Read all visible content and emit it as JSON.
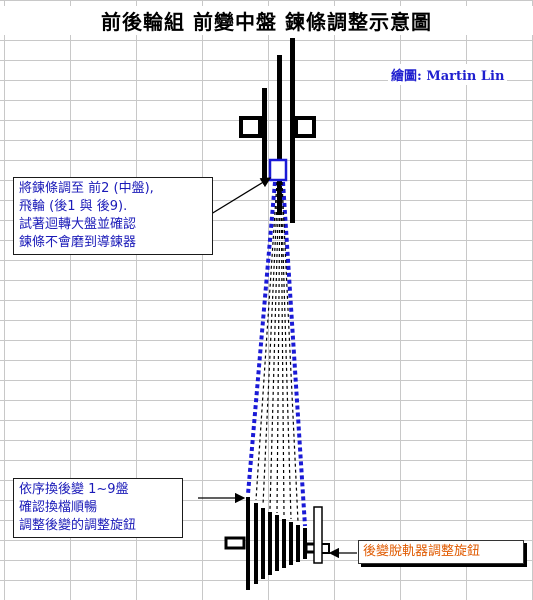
{
  "title": "前後輪組 前變中盤 鍊條調整示意圖",
  "credit": "繪圖: Martin Lin",
  "note_chain": {
    "lines": [
      "將鍊條調至 前2 (中盤),",
      "飛輪 (後1 與 後9).",
      "試著迴轉大盤並確認",
      "鍊條不會磨到導鍊器"
    ]
  },
  "note_shift": {
    "lines": [
      "依序換後變 1~9盤",
      "確認換檔順暢",
      "調整後變的調整旋鈕"
    ]
  },
  "note_knob": "後變脫軌器調整旋鈕",
  "colors": {
    "chain_outer": "#1a1ad6",
    "note_text": "#1a1ab8",
    "knob_label": "#e05a00",
    "credit": "#1f1fcf"
  },
  "rear_cog_count": 9
}
